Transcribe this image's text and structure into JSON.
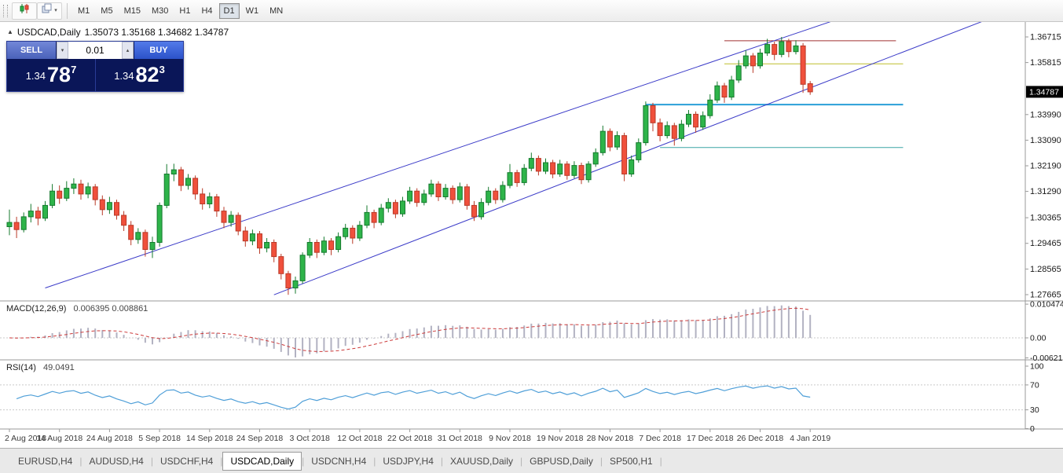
{
  "toolbar": {
    "timeframes": [
      "M1",
      "M5",
      "M15",
      "M30",
      "H1",
      "H4",
      "D1",
      "W1",
      "MN"
    ],
    "active_timeframe": "D1",
    "icons": {
      "caret": "▾"
    }
  },
  "chart": {
    "title": "USDCAD,Daily",
    "ohlc": "1.35073 1.35168 1.34682 1.34787",
    "marker": "▲"
  },
  "trade_panel": {
    "sell_label": "SELL",
    "buy_label": "BUY",
    "volume": "0.01",
    "spin_down": "▾",
    "spin_up": "▴",
    "sell_price": {
      "prefix": "1.34",
      "big": "78",
      "sup": "7"
    },
    "buy_price": {
      "prefix": "1.34",
      "big": "82",
      "sup": "3"
    }
  },
  "tabs": {
    "separator": "|",
    "items": [
      "EURUSD,H4",
      "AUDUSD,H4",
      "USDCHF,H4",
      "USDCAD,Daily",
      "USDCNH,H4",
      "USDJPY,H4",
      "XAUUSD,Daily",
      "GBPUSD,Daily",
      "SP500,H1"
    ],
    "active": "USDCAD,Daily"
  },
  "chart_data": {
    "type": "candlestick",
    "symbol": "USDCAD",
    "timeframe": "Daily",
    "up_color": "#2eb44a",
    "up_border": "#157a2e",
    "down_color": "#f0503c",
    "down_border": "#b93a28",
    "channel_color": "#3b3bc8",
    "price_axis_labels": [
      "1.36715",
      "1.35815",
      "1.33990",
      "1.33090",
      "1.32190",
      "1.31290",
      "1.30365",
      "1.29465",
      "1.28565",
      "1.27665"
    ],
    "current_price": "1.34787",
    "date_labels": [
      {
        "i": 0,
        "label": "2 Aug 2018"
      },
      {
        "i": 7,
        "label": "14 Aug 2018"
      },
      {
        "i": 14,
        "label": "24 Aug 2018"
      },
      {
        "i": 21,
        "label": "5 Sep 2018"
      },
      {
        "i": 28,
        "label": "14 Sep 2018"
      },
      {
        "i": 35,
        "label": "24 Sep 2018"
      },
      {
        "i": 42,
        "label": "3 Oct 2018"
      },
      {
        "i": 49,
        "label": "12 Oct 2018"
      },
      {
        "i": 56,
        "label": "22 Oct 2018"
      },
      {
        "i": 63,
        "label": "31 Oct 2018"
      },
      {
        "i": 70,
        "label": "9 Nov 2018"
      },
      {
        "i": 77,
        "label": "19 Nov 2018"
      },
      {
        "i": 84,
        "label": "28 Nov 2018"
      },
      {
        "i": 91,
        "label": "7 Dec 2018"
      },
      {
        "i": 98,
        "label": "17 Dec 2018"
      },
      {
        "i": 105,
        "label": "26 Dec 2018"
      },
      {
        "i": 112,
        "label": "4 Jan 2019"
      }
    ],
    "channel_lines": [
      {
        "i1": 5,
        "p1": 1.279,
        "i2": 116,
        "p2": 1.3735
      },
      {
        "i1": 37,
        "p1": 1.2766,
        "i2": 137,
        "p2": 1.3735
      }
    ],
    "hlines": [
      {
        "price": 1.3658,
        "i1": 100,
        "i2": 124,
        "color": "#a03333",
        "width": 1
      },
      {
        "price": 1.3577,
        "i1": 100,
        "i2": 125,
        "color": "#bdbd2a",
        "width": 1
      },
      {
        "price": 1.3434,
        "i1": 89,
        "i2": 125,
        "color": "#2a9fd8",
        "width": 2
      },
      {
        "price": 1.3283,
        "i1": 91,
        "i2": 125,
        "color": "#3aa6a6",
        "width": 1
      }
    ],
    "macd": {
      "label": "MACD(12,26,9)",
      "values": "0.006395 0.008861",
      "axis_labels": [
        "0.010474",
        "0.00",
        "-0.006218"
      ],
      "histogram_color": "#b2b2c2",
      "signal_color": "#cc3a3a"
    },
    "rsi": {
      "label": "RSI(14)",
      "value": "49.0491",
      "axis_labels": [
        "100",
        "70",
        "30",
        "0"
      ],
      "levels": [
        70,
        30
      ],
      "line_color": "#4f9fd8"
    },
    "ohlc": [
      [
        1.3005,
        1.3065,
        1.2975,
        1.302
      ],
      [
        1.302,
        1.304,
        1.2965,
        1.2995
      ],
      [
        1.2995,
        1.3055,
        1.2985,
        1.304
      ],
      [
        1.304,
        1.3085,
        1.302,
        1.306
      ],
      [
        1.306,
        1.3075,
        1.301,
        1.3035
      ],
      [
        1.3035,
        1.3095,
        1.3025,
        1.308
      ],
      [
        1.308,
        1.3155,
        1.307,
        1.313
      ],
      [
        1.313,
        1.315,
        1.3085,
        1.3105
      ],
      [
        1.3105,
        1.3165,
        1.3095,
        1.314
      ],
      [
        1.314,
        1.3175,
        1.312,
        1.3155
      ],
      [
        1.3155,
        1.317,
        1.31,
        1.312
      ],
      [
        1.312,
        1.316,
        1.3105,
        1.3145
      ],
      [
        1.3145,
        1.3155,
        1.308,
        1.31
      ],
      [
        1.31,
        1.3115,
        1.3045,
        1.3065
      ],
      [
        1.3065,
        1.311,
        1.305,
        1.309
      ],
      [
        1.309,
        1.31,
        1.303,
        1.3045
      ],
      [
        1.3045,
        1.306,
        1.299,
        1.301
      ],
      [
        1.301,
        1.3025,
        1.294,
        1.296
      ],
      [
        1.296,
        1.3,
        1.2945,
        1.2985
      ],
      [
        1.2985,
        1.2995,
        1.29,
        1.2925
      ],
      [
        1.2925,
        1.297,
        1.2895,
        1.295
      ],
      [
        1.295,
        1.309,
        1.2935,
        1.308
      ],
      [
        1.308,
        1.3225,
        1.307,
        1.319
      ],
      [
        1.319,
        1.3226,
        1.3165,
        1.3205
      ],
      [
        1.3205,
        1.3215,
        1.313,
        1.315
      ],
      [
        1.315,
        1.319,
        1.3135,
        1.3175
      ],
      [
        1.3175,
        1.3185,
        1.31,
        1.312
      ],
      [
        1.312,
        1.314,
        1.3065,
        1.3085
      ],
      [
        1.3085,
        1.3125,
        1.307,
        1.311
      ],
      [
        1.311,
        1.312,
        1.304,
        1.306
      ],
      [
        1.306,
        1.3075,
        1.3,
        1.302
      ],
      [
        1.302,
        1.306,
        1.3005,
        1.3045
      ],
      [
        1.3045,
        1.3055,
        1.2975,
        1.299
      ],
      [
        1.299,
        1.3005,
        1.2935,
        1.2955
      ],
      [
        1.2955,
        1.2995,
        1.294,
        1.298
      ],
      [
        1.298,
        1.299,
        1.291,
        1.293
      ],
      [
        1.293,
        1.2965,
        1.2915,
        1.295
      ],
      [
        1.295,
        1.296,
        1.288,
        1.29
      ],
      [
        1.29,
        1.291,
        1.282,
        1.284
      ],
      [
        1.284,
        1.285,
        1.2766,
        1.279
      ],
      [
        1.279,
        1.283,
        1.277,
        1.2815
      ],
      [
        1.2815,
        1.2915,
        1.2805,
        1.2905
      ],
      [
        1.2905,
        1.2965,
        1.2895,
        1.295
      ],
      [
        1.295,
        1.296,
        1.2895,
        1.2915
      ],
      [
        1.2915,
        1.297,
        1.2905,
        1.2955
      ],
      [
        1.2955,
        1.2965,
        1.2905,
        1.2925
      ],
      [
        1.2925,
        1.2985,
        1.2915,
        1.297
      ],
      [
        1.297,
        1.3015,
        1.296,
        1.3
      ],
      [
        1.3,
        1.301,
        1.2945,
        1.2965
      ],
      [
        1.2965,
        1.3025,
        1.2955,
        1.301
      ],
      [
        1.301,
        1.308,
        1.3,
        1.3055
      ],
      [
        1.3055,
        1.3065,
        1.3,
        1.302
      ],
      [
        1.302,
        1.3085,
        1.301,
        1.307
      ],
      [
        1.307,
        1.3105,
        1.3055,
        1.309
      ],
      [
        1.309,
        1.31,
        1.3035,
        1.305
      ],
      [
        1.305,
        1.311,
        1.304,
        1.3095
      ],
      [
        1.3095,
        1.3145,
        1.3085,
        1.313
      ],
      [
        1.313,
        1.314,
        1.3075,
        1.309
      ],
      [
        1.309,
        1.3135,
        1.308,
        1.312
      ],
      [
        1.312,
        1.317,
        1.311,
        1.3155
      ],
      [
        1.3155,
        1.3165,
        1.3095,
        1.311
      ],
      [
        1.311,
        1.3155,
        1.31,
        1.314
      ],
      [
        1.314,
        1.315,
        1.3085,
        1.31
      ],
      [
        1.31,
        1.316,
        1.309,
        1.3145
      ],
      [
        1.3145,
        1.3155,
        1.3065,
        1.308
      ],
      [
        1.308,
        1.3095,
        1.3025,
        1.304
      ],
      [
        1.304,
        1.3105,
        1.303,
        1.309
      ],
      [
        1.309,
        1.3145,
        1.308,
        1.313
      ],
      [
        1.313,
        1.314,
        1.3085,
        1.31
      ],
      [
        1.31,
        1.3165,
        1.309,
        1.315
      ],
      [
        1.315,
        1.3225,
        1.314,
        1.3195
      ],
      [
        1.3195,
        1.3205,
        1.3145,
        1.316
      ],
      [
        1.316,
        1.3225,
        1.315,
        1.321
      ],
      [
        1.321,
        1.3265,
        1.32,
        1.3245
      ],
      [
        1.3245,
        1.3255,
        1.3185,
        1.32
      ],
      [
        1.32,
        1.3245,
        1.319,
        1.323
      ],
      [
        1.323,
        1.324,
        1.3175,
        1.319
      ],
      [
        1.319,
        1.324,
        1.318,
        1.3225
      ],
      [
        1.3225,
        1.3235,
        1.317,
        1.3185
      ],
      [
        1.3185,
        1.3235,
        1.3175,
        1.322
      ],
      [
        1.322,
        1.323,
        1.3155,
        1.317
      ],
      [
        1.317,
        1.3235,
        1.316,
        1.3225
      ],
      [
        1.3225,
        1.328,
        1.3215,
        1.3265
      ],
      [
        1.3265,
        1.336,
        1.3255,
        1.334
      ],
      [
        1.334,
        1.335,
        1.327,
        1.3285
      ],
      [
        1.3285,
        1.334,
        1.3275,
        1.3325
      ],
      [
        1.3325,
        1.3335,
        1.3165,
        1.319
      ],
      [
        1.319,
        1.3255,
        1.318,
        1.324
      ],
      [
        1.324,
        1.3315,
        1.323,
        1.33
      ],
      [
        1.33,
        1.3445,
        1.329,
        1.343
      ],
      [
        1.343,
        1.344,
        1.334,
        1.337
      ],
      [
        1.337,
        1.3385,
        1.3305,
        1.3325
      ],
      [
        1.3325,
        1.3375,
        1.3315,
        1.336
      ],
      [
        1.336,
        1.337,
        1.329,
        1.3315
      ],
      [
        1.3315,
        1.338,
        1.3305,
        1.3365
      ],
      [
        1.3365,
        1.3415,
        1.3355,
        1.34
      ],
      [
        1.34,
        1.341,
        1.3335,
        1.3355
      ],
      [
        1.3355,
        1.341,
        1.3345,
        1.3395
      ],
      [
        1.3395,
        1.347,
        1.3385,
        1.345
      ],
      [
        1.345,
        1.3515,
        1.344,
        1.35
      ],
      [
        1.35,
        1.351,
        1.344,
        1.346
      ],
      [
        1.346,
        1.3535,
        1.345,
        1.352
      ],
      [
        1.352,
        1.359,
        1.351,
        1.357
      ],
      [
        1.357,
        1.3625,
        1.356,
        1.3605
      ],
      [
        1.3605,
        1.3615,
        1.3545,
        1.357
      ],
      [
        1.357,
        1.363,
        1.356,
        1.3615
      ],
      [
        1.3615,
        1.3665,
        1.3605,
        1.3645
      ],
      [
        1.3645,
        1.3655,
        1.359,
        1.361
      ],
      [
        1.361,
        1.36715,
        1.36,
        1.3655
      ],
      [
        1.3655,
        1.3665,
        1.36,
        1.362
      ],
      [
        1.362,
        1.366,
        1.361,
        1.364
      ],
      [
        1.364,
        1.365,
        1.3475,
        1.3505
      ],
      [
        1.35073,
        1.35168,
        1.34682,
        1.34787
      ]
    ]
  }
}
